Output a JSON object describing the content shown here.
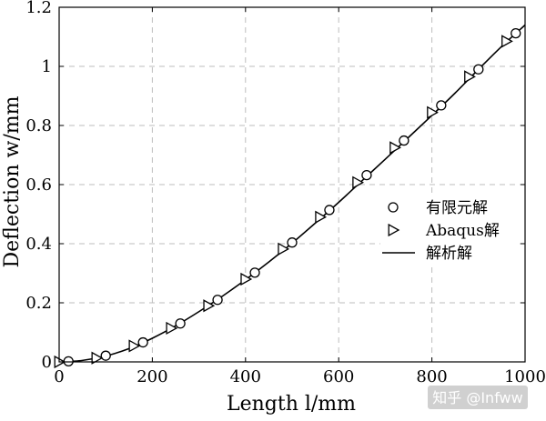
{
  "chart_data": {
    "type": "line",
    "xlabel": "Length l/mm",
    "ylabel": "Deflection w/mm",
    "xlim": [
      0,
      1000
    ],
    "ylim": [
      0,
      1.2
    ],
    "xticks": [
      "0",
      "200",
      "400",
      "600",
      "800",
      "1000"
    ],
    "yticks": [
      "0",
      "0.2",
      "0.4",
      "0.6",
      "0.8",
      "1",
      "1.2"
    ],
    "grid": true,
    "legend_position": "right",
    "series": [
      {
        "name": "有限元解",
        "marker": "circle",
        "x": [
          20,
          100,
          180,
          260,
          340,
          420,
          500,
          580,
          660,
          740,
          820,
          900,
          980
        ],
        "y": [
          0.002,
          0.021,
          0.066,
          0.13,
          0.21,
          0.302,
          0.404,
          0.514,
          0.632,
          0.749,
          0.868,
          0.99,
          1.112
        ]
      },
      {
        "name": "Abaqus解",
        "marker": "triangle-right",
        "x": [
          0,
          80,
          160,
          240,
          320,
          400,
          480,
          560,
          640,
          720,
          800,
          880,
          960
        ],
        "y": [
          0.0,
          0.013,
          0.054,
          0.114,
          0.19,
          0.28,
          0.382,
          0.49,
          0.607,
          0.725,
          0.844,
          0.965,
          1.085
        ]
      },
      {
        "name": "解析解",
        "marker": "line",
        "x": [
          0,
          50,
          100,
          150,
          200,
          250,
          300,
          350,
          400,
          450,
          500,
          550,
          600,
          650,
          700,
          750,
          800,
          850,
          900,
          950,
          1000
        ],
        "y": [
          0.0,
          0.005,
          0.02,
          0.045,
          0.08,
          0.122,
          0.17,
          0.222,
          0.278,
          0.338,
          0.402,
          0.47,
          0.54,
          0.613,
          0.686,
          0.76,
          0.834,
          0.91,
          0.99,
          1.068,
          1.14
        ]
      }
    ]
  },
  "watermark": "知乎 @Infww"
}
